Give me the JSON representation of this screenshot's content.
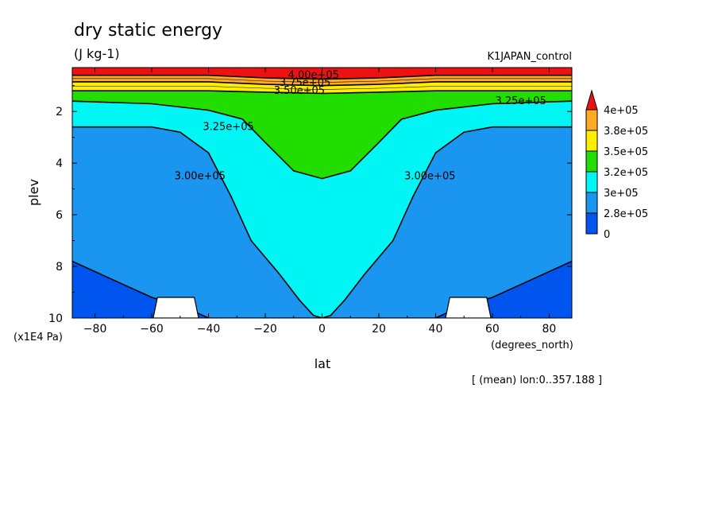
{
  "header": {
    "title": "dry static energy",
    "units": "(J kg-1)",
    "experiment": "K1JAPAN_control",
    "footnote": "[ (mean) lon:0..357.188 ]"
  },
  "colors": {
    "levels": [
      "#0055ee",
      "#1a96f0",
      "#00f5f5",
      "#22dd00",
      "#ffee00",
      "#ffaa22",
      "#ee1111"
    ],
    "missing": "#ffffff"
  },
  "chart_data": {
    "type": "contour",
    "title": "dry static energy",
    "units": "(J kg-1)",
    "xlabel": "lat",
    "xunits": "(degrees_north)",
    "ylabel": "plev",
    "yunits": "(x1E4 Pa)",
    "xlim": [
      -88,
      88
    ],
    "ylim": [
      10,
      0.3
    ],
    "xticks": [
      -80,
      -60,
      -40,
      -20,
      0,
      20,
      40,
      60,
      80
    ],
    "xtick_labels": [
      "−80",
      "−60",
      "−40",
      "−20",
      "0",
      "20",
      "40",
      "60",
      "80"
    ],
    "yticks": [
      2,
      4,
      6,
      8,
      10
    ],
    "ytick_labels": [
      "2",
      "4",
      "6",
      "8",
      "10"
    ],
    "colorbar": {
      "labels": [
        "4e+05",
        "3.8e+05",
        "3.5e+05",
        "3.2e+05",
        "3e+05",
        "2.8e+05",
        "0"
      ]
    },
    "contour_labels": [
      {
        "text": "4.00e+05",
        "lat": -3,
        "plev": 0.6
      },
      {
        "text": "3.75e+05",
        "lat": -6,
        "plev": 0.88
      },
      {
        "text": "3.50e+05",
        "lat": -8,
        "plev": 1.2
      },
      {
        "text": "3.25e+05",
        "lat": 70,
        "plev": 1.6
      },
      {
        "text": "3.25e+05",
        "lat": -33,
        "plev": 2.6
      },
      {
        "text": "3.00e+05",
        "lat": -43,
        "plev": 4.5
      },
      {
        "text": "3.00e+05",
        "lat": 38,
        "plev": 4.5
      }
    ],
    "bands": [
      {
        "level": "4e+05",
        "lat": [
          -88,
          -40,
          -20,
          0,
          20,
          40,
          88
        ],
        "plev": [
          0.6,
          0.6,
          0.7,
          0.75,
          0.7,
          0.6,
          0.6
        ]
      },
      {
        "level": "3.8e+05",
        "lat": [
          -88,
          -40,
          -20,
          0,
          20,
          40,
          88
        ],
        "plev": [
          0.85,
          0.85,
          0.95,
          1.0,
          0.95,
          0.85,
          0.85
        ]
      },
      {
        "level": "3.5e+05",
        "lat": [
          -88,
          -40,
          -20,
          0,
          20,
          40,
          88
        ],
        "plev": [
          1.2,
          1.2,
          1.25,
          1.3,
          1.25,
          1.2,
          1.2
        ]
      },
      {
        "level": "3.2e+05",
        "lat": [
          -88,
          -60,
          -40,
          -28,
          -20,
          -10,
          0,
          10,
          20,
          28,
          40,
          60,
          88
        ],
        "plev": [
          1.6,
          1.7,
          1.95,
          2.3,
          3.2,
          4.3,
          4.6,
          4.3,
          3.2,
          2.3,
          1.95,
          1.7,
          1.6
        ]
      },
      {
        "level": "3e+05",
        "lat": [
          -88,
          -60,
          -50,
          -40,
          -32,
          -25,
          -15,
          -8,
          -3,
          0,
          3,
          8,
          15,
          25,
          32,
          40,
          50,
          60,
          88
        ],
        "plev": [
          2.6,
          2.6,
          2.8,
          3.6,
          5.3,
          7.0,
          8.3,
          9.3,
          9.9,
          10,
          9.9,
          9.3,
          8.3,
          7.0,
          5.3,
          3.6,
          2.8,
          2.6,
          2.6
        ]
      },
      {
        "level": "2.8e+05",
        "lat": [
          -88,
          -70,
          -60,
          -48,
          -40,
          40,
          48,
          60,
          70,
          88
        ],
        "plev": [
          7.8,
          8.7,
          9.2,
          9.6,
          10,
          10,
          9.6,
          9.2,
          8.7,
          7.8
        ]
      }
    ],
    "missing_regions": [
      {
        "lat": [
          -58,
          -45
        ],
        "plev": [
          9.2,
          10
        ]
      },
      {
        "lat": [
          45,
          58
        ],
        "plev": [
          9.2,
          10
        ]
      }
    ]
  }
}
